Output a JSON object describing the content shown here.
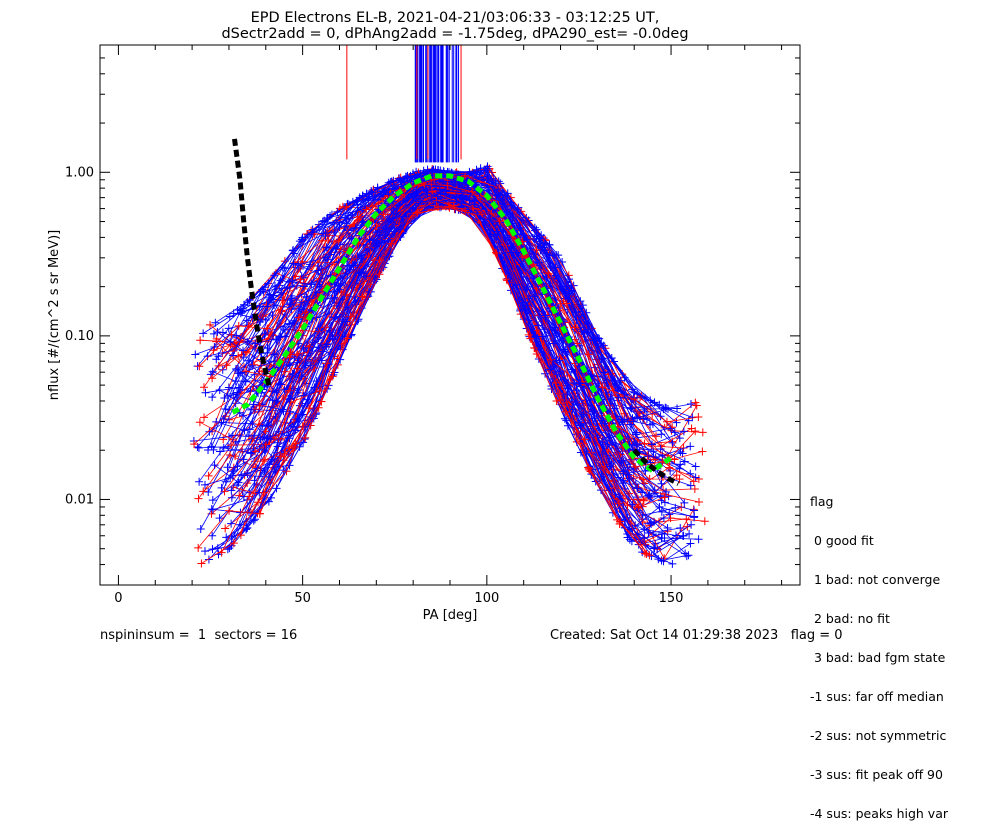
{
  "chart_data": {
    "type": "line",
    "title": "EPD Electrons EL-B, 2021-04-21/03:06:33 - 03:12:25 UT,",
    "subtitle": "dSectr2add = 0, dPhAng2add = -1.75deg, dPA290_est=  -0.0deg",
    "xlabel": "PA [deg]",
    "ylabel": "nflux [#/(cm^2 s sr MeV)]",
    "xlim": [
      -5,
      185
    ],
    "ylim": [
      0.003,
      6.0
    ],
    "yscale": "log",
    "x_ticks": [
      0,
      50,
      100,
      150
    ],
    "x_tick_labels": [
      "0",
      "50",
      "100",
      "150"
    ],
    "y_ticks": [
      0.01,
      0.1,
      1.0
    ],
    "y_tick_labels": [
      "0.01",
      "0.10",
      "1.00"
    ],
    "colors": {
      "spectra_a": "#0000ff",
      "spectra_b": "#ff0000",
      "fit": "#00ff00",
      "median": "#000000"
    },
    "series": [
      {
        "style": "thick-dashed",
        "color": "#00ff00",
        "x": [
          31,
          35,
          40,
          45,
          50,
          55,
          60,
          65,
          70,
          75,
          80,
          85,
          90,
          95,
          100,
          105,
          110,
          115,
          120,
          125,
          130,
          135,
          140,
          145,
          150
        ],
        "y": [
          0.034,
          0.038,
          0.052,
          0.075,
          0.11,
          0.17,
          0.26,
          0.4,
          0.56,
          0.72,
          0.86,
          0.95,
          0.95,
          0.88,
          0.72,
          0.52,
          0.33,
          0.2,
          0.12,
          0.072,
          0.042,
          0.026,
          0.018,
          0.015,
          0.018
        ]
      },
      {
        "style": "thick-dashed",
        "color": "#000000",
        "x": [
          31.5,
          33,
          34,
          35,
          36,
          37,
          38,
          39,
          40,
          41
        ],
        "y": [
          1.6,
          0.9,
          0.5,
          0.3,
          0.2,
          0.14,
          0.1,
          0.075,
          0.06,
          0.048
        ]
      },
      {
        "style": "thick-dashed",
        "color": "#000000",
        "x": [
          140,
          143,
          146,
          149,
          152
        ],
        "y": [
          0.02,
          0.017,
          0.015,
          0.0135,
          0.0125
        ]
      }
    ],
    "spectra_envelope": {
      "pa": [
        22,
        30,
        40,
        50,
        60,
        70,
        80,
        85,
        90,
        95,
        100,
        110,
        120,
        130,
        140,
        150,
        158
      ],
      "low": [
        0.004,
        0.005,
        0.009,
        0.022,
        0.07,
        0.22,
        0.55,
        0.62,
        0.6,
        0.58,
        0.45,
        0.12,
        0.035,
        0.012,
        0.005,
        0.004,
        0.005
      ],
      "high": [
        0.11,
        0.13,
        0.2,
        0.4,
        0.6,
        0.8,
        1.0,
        1.05,
        1.0,
        1.0,
        1.1,
        0.55,
        0.3,
        0.1,
        0.045,
        0.035,
        0.04
      ]
    }
  },
  "legend": {
    "title": "flag",
    "items": [
      " 0 good fit",
      " 1 bad: not converge",
      " 2 bad: no fit",
      " 3 bad: bad fgm state",
      "-1 sus: far off median",
      "-2 sus: not symmetric",
      "-3 sus: fit peak off 90",
      "-4 sus: peaks high var"
    ]
  },
  "footer": {
    "left": "nspininsum =  1  sectors = 16",
    "right": "Created: Sat Oct 14 01:29:38 2023   flag = 0"
  }
}
